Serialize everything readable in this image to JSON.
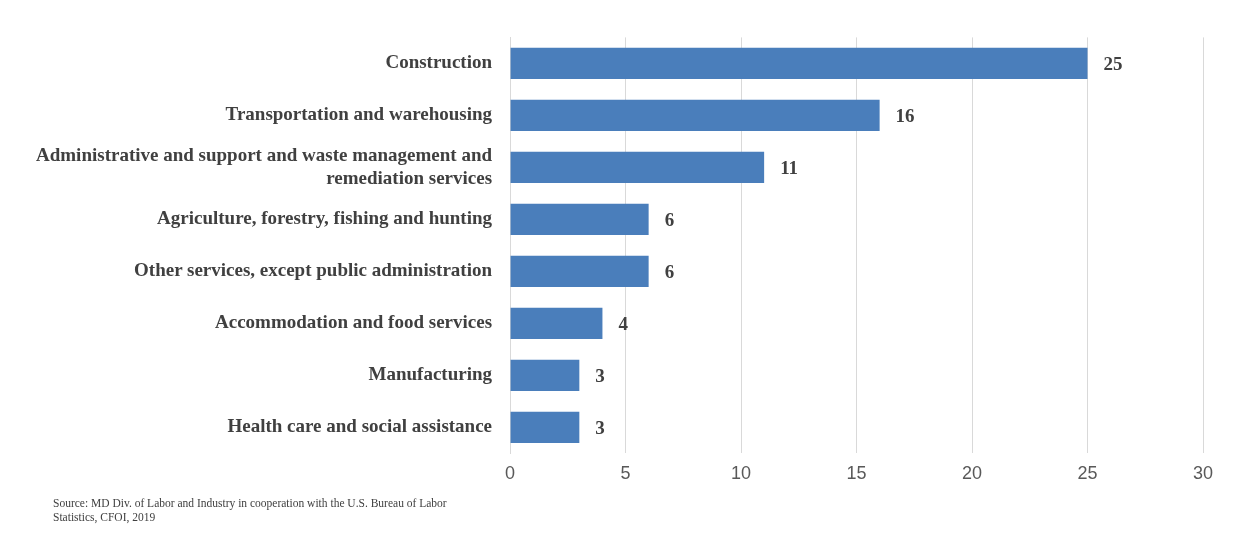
{
  "chart_data": {
    "type": "bar",
    "orientation": "horizontal",
    "categories": [
      "Construction",
      "Transportation and warehousing",
      "Administrative and support and waste management and remediation services",
      "Agriculture, forestry, fishing and hunting",
      "Other services, except public administration",
      "Accommodation and food services",
      "Manufacturing",
      "Health care and social assistance"
    ],
    "values": [
      25,
      16,
      11,
      6,
      6,
      4,
      3,
      3
    ],
    "color": "#4a7ebb",
    "xlim": [
      0,
      30
    ],
    "xticks": [
      0,
      5,
      10,
      15,
      20,
      25,
      30
    ],
    "grid": "x",
    "data_labels": true,
    "annotations": [
      "Source: MD Div. of Labor and Industry in cooperation with the U.S. Bureau of Labor Statistics, CFOI, 2019"
    ]
  }
}
